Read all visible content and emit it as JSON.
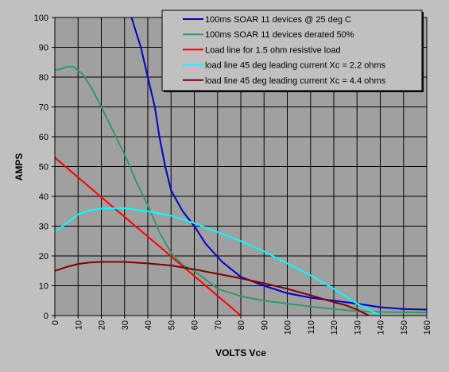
{
  "chart_data": {
    "type": "line",
    "title": "",
    "xlabel": "VOLTS Vce",
    "ylabel": "AMPS",
    "xlim": [
      0,
      160
    ],
    "ylim": [
      0,
      100
    ],
    "x_ticks": [
      0,
      10,
      20,
      30,
      40,
      50,
      60,
      70,
      80,
      90,
      100,
      110,
      120,
      130,
      140,
      150,
      160
    ],
    "y_ticks": [
      0,
      10,
      20,
      30,
      40,
      50,
      60,
      70,
      80,
      90,
      100
    ],
    "grid": true,
    "legend_position": "top-right",
    "colors": {
      "plot_background": "#a0a0a0",
      "page_background": "#c0c0c0",
      "legend_background": "#c0c0c0",
      "grid": "#000000"
    },
    "series": [
      {
        "name": "100ms SOAR 11 devices @ 25 deg C",
        "color": "#0000cc",
        "points": [
          [
            33,
            100
          ],
          [
            37,
            90
          ],
          [
            40,
            80
          ],
          [
            43,
            70
          ],
          [
            45,
            60
          ],
          [
            47.5,
            50
          ],
          [
            50,
            42
          ],
          [
            55,
            35
          ],
          [
            60,
            30
          ],
          [
            65,
            24
          ],
          [
            72,
            18
          ],
          [
            80,
            13
          ],
          [
            90,
            10
          ],
          [
            100,
            7.5
          ],
          [
            110,
            6
          ],
          [
            120,
            5
          ],
          [
            130,
            4
          ],
          [
            140,
            2.8
          ],
          [
            150,
            2.2
          ],
          [
            160,
            2
          ]
        ]
      },
      {
        "name": "100ms SOAR 11 devices derated 50%",
        "color": "#339966",
        "points": [
          [
            0,
            82.5
          ],
          [
            2,
            82.5
          ],
          [
            5,
            83.5
          ],
          [
            8,
            83.5
          ],
          [
            12,
            81
          ],
          [
            16,
            76
          ],
          [
            20,
            70
          ],
          [
            25,
            62
          ],
          [
            30,
            54
          ],
          [
            35,
            45
          ],
          [
            40,
            37
          ],
          [
            45,
            28
          ],
          [
            50,
            21
          ],
          [
            55,
            17
          ],
          [
            60,
            15
          ],
          [
            70,
            9
          ],
          [
            80,
            6.5
          ],
          [
            90,
            5
          ],
          [
            100,
            4
          ],
          [
            110,
            3
          ],
          [
            120,
            2.2
          ],
          [
            130,
            1.5
          ],
          [
            140,
            1.2
          ],
          [
            160,
            1
          ]
        ]
      },
      {
        "name": "Load line for 1.5 ohm resistive load",
        "color": "#ff0000",
        "points": [
          [
            0,
            53
          ],
          [
            80,
            0
          ]
        ]
      },
      {
        "name": "load line 45 deg leading current Xc = 2.2 ohms",
        "color": "#00ffff",
        "points": [
          [
            0,
            28
          ],
          [
            5,
            31
          ],
          [
            10,
            34
          ],
          [
            15,
            35.3
          ],
          [
            20,
            35.9
          ],
          [
            25,
            36
          ],
          [
            30,
            36
          ],
          [
            40,
            35
          ],
          [
            50,
            33.5
          ],
          [
            60,
            31
          ],
          [
            70,
            28
          ],
          [
            80,
            25
          ],
          [
            90,
            21.5
          ],
          [
            100,
            17.5
          ],
          [
            110,
            13.5
          ],
          [
            120,
            9
          ],
          [
            125,
            6.5
          ],
          [
            130,
            4
          ],
          [
            135,
            2
          ],
          [
            140,
            0
          ]
        ]
      },
      {
        "name": "load line 45 deg leading current Xc = 4.4 ohms",
        "color": "#800000",
        "points": [
          [
            0,
            15
          ],
          [
            5,
            16.3
          ],
          [
            10,
            17.3
          ],
          [
            15,
            17.8
          ],
          [
            20,
            18
          ],
          [
            30,
            18
          ],
          [
            40,
            17.5
          ],
          [
            50,
            16.8
          ],
          [
            60,
            15.5
          ],
          [
            70,
            14
          ],
          [
            80,
            12.5
          ],
          [
            90,
            10.8
          ],
          [
            100,
            9
          ],
          [
            110,
            6.8
          ],
          [
            120,
            4.5
          ],
          [
            125,
            3.5
          ],
          [
            130,
            2
          ],
          [
            135,
            0
          ]
        ]
      }
    ]
  }
}
